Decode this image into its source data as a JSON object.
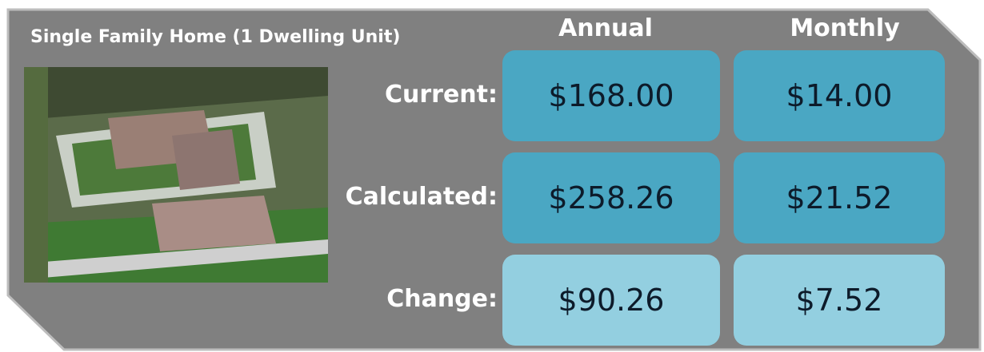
{
  "header": {
    "title": "Single Family Home (1 Dwelling Unit)"
  },
  "table": {
    "columns": [
      "Annual",
      "Monthly"
    ],
    "rows": [
      {
        "label": "Current:",
        "values": [
          "$168.00",
          "$14.00"
        ]
      },
      {
        "label": "Calculated:",
        "values": [
          "$258.26",
          "$21.52"
        ]
      },
      {
        "label": "Change:",
        "values": [
          "$90.26",
          "$7.52"
        ]
      }
    ]
  }
}
